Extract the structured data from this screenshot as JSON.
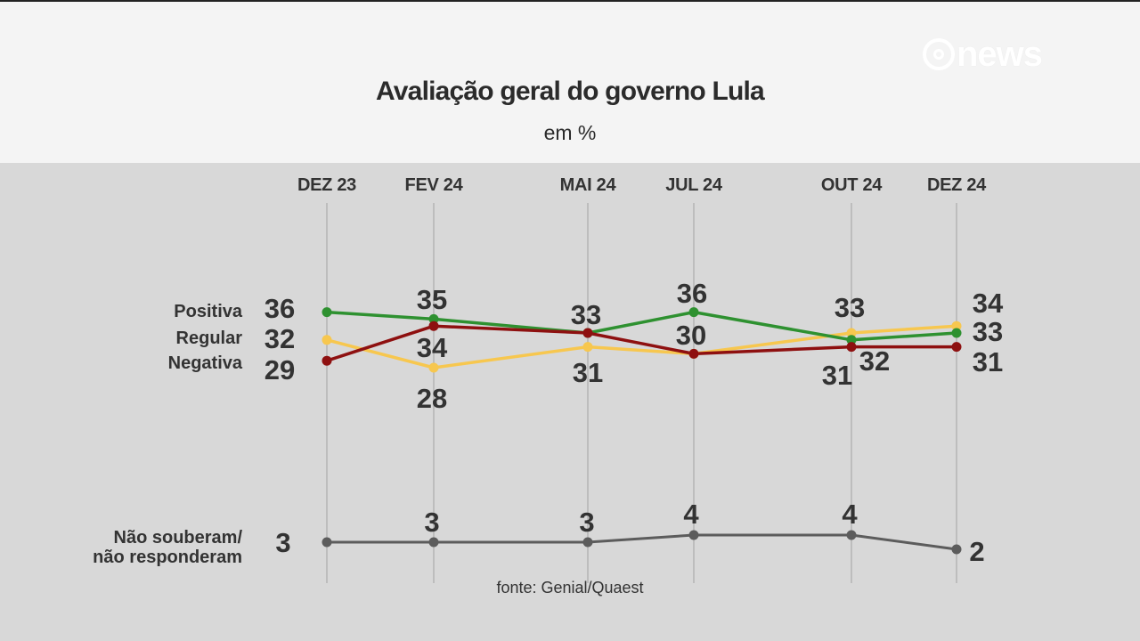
{
  "logo": {
    "text": "news"
  },
  "chart_data": {
    "type": "line",
    "title": "Avaliação geral do governo Lula",
    "subtitle": "em %",
    "x": [
      "DEZ 23",
      "FEV 24",
      "MAI 24",
      "JUL 24",
      "OUT 24",
      "DEZ 24"
    ],
    "series": [
      {
        "name": "Positiva",
        "values": [
          36,
          35,
          33,
          36,
          32,
          33
        ],
        "color": "#2e9130"
      },
      {
        "name": "Regular",
        "values": [
          32,
          28,
          31,
          30,
          33,
          34
        ],
        "color": "#f7c74f"
      },
      {
        "name": "Negativa",
        "values": [
          29,
          34,
          33,
          30,
          31,
          31
        ],
        "color": "#8e1010"
      },
      {
        "name": "Não souberam/\nnão responderam",
        "values": [
          3,
          3,
          3,
          4,
          4,
          2
        ],
        "color": "#5c5c5c"
      }
    ],
    "source": "fonte: Genial/Quaest",
    "grid": "vertical"
  }
}
